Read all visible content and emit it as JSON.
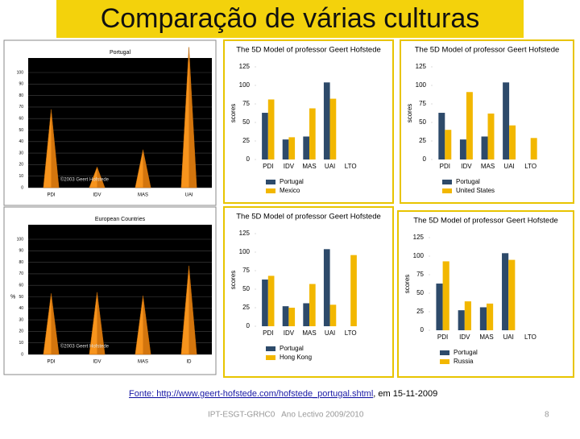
{
  "slide": {
    "title": "Comparação de várias culturas",
    "source_link": "Fonte: http://www.geert-hofstede.com/hofstede_portugal.shtml",
    "source_date": ", em 15-11-2009",
    "footer": "IPT-ESGT-GRHC0   Ano Lectivo 2009/2010",
    "page_number": 8
  },
  "chart_data": [
    {
      "type": "cone",
      "title": "Portugal",
      "annotation": "©2003 Geert Hofstede",
      "categories": [
        "PDI",
        "IDV",
        "MAS",
        "UAI"
      ],
      "values": [
        68,
        18,
        33,
        122
      ],
      "color": "#f7941d",
      "ylim": [
        0,
        100
      ],
      "yticks": [
        0,
        10,
        20,
        30,
        40,
        50,
        60,
        70,
        80,
        90,
        100
      ],
      "grid": true
    },
    {
      "type": "bar",
      "title": "The 5D Model of professor Geert Hofstede",
      "ylabel": "scores",
      "categories": [
        "PDI",
        "IDV",
        "MAS",
        "UAI",
        "LTO"
      ],
      "series": [
        {
          "name": "Portugal",
          "color": "#2d4a6a",
          "values": [
            63,
            27,
            31,
            104,
            null
          ]
        },
        {
          "name": "Mexico",
          "color": "#f2b700",
          "values": [
            81,
            30,
            69,
            82,
            null
          ]
        }
      ],
      "ylim": [
        0,
        125
      ],
      "yticks": [
        0,
        25,
        50,
        75,
        100,
        125
      ]
    },
    {
      "type": "bar",
      "title": "The 5D Model of professor Geert Hofstede",
      "ylabel": "scores",
      "categories": [
        "PDI",
        "IDV",
        "MAS",
        "UAI",
        "LTO"
      ],
      "series": [
        {
          "name": "Portugal",
          "color": "#2d4a6a",
          "values": [
            63,
            27,
            31,
            104,
            null
          ]
        },
        {
          "name": "United States",
          "color": "#f2b700",
          "values": [
            40,
            91,
            62,
            46,
            29
          ]
        }
      ],
      "ylim": [
        0,
        125
      ],
      "yticks": [
        0,
        25,
        50,
        75,
        100,
        125
      ]
    },
    {
      "type": "cone",
      "title": "European Countries",
      "ylabel": "%",
      "annotation": "©2003 Geert Hofstede",
      "categories": [
        "PDI",
        "IDV",
        "MAS",
        "ID"
      ],
      "values": [
        53,
        54,
        51,
        77
      ],
      "color": "#f7941d",
      "ylim": [
        0,
        100
      ],
      "yticks": [
        0,
        10,
        20,
        30,
        40,
        50,
        60,
        70,
        80,
        90,
        100
      ],
      "grid": true
    },
    {
      "type": "bar",
      "title": "The 5D Model of professor Geert Hofstede",
      "ylabel": "scores",
      "categories": [
        "PDI",
        "IDV",
        "MAS",
        "UAI",
        "LTO"
      ],
      "series": [
        {
          "name": "Portugal",
          "color": "#2d4a6a",
          "values": [
            63,
            27,
            31,
            104,
            null
          ]
        },
        {
          "name": "Hong Kong",
          "color": "#f2b700",
          "values": [
            68,
            25,
            57,
            29,
            96
          ]
        }
      ],
      "ylim": [
        0,
        125
      ],
      "yticks": [
        0,
        25,
        50,
        75,
        100,
        125
      ]
    },
    {
      "type": "bar",
      "title": "The 5D Model of professor Geert Hofstede",
      "ylabel": "scores",
      "categories": [
        "PDI",
        "IDV",
        "MAS",
        "UAI",
        "LTO"
      ],
      "series": [
        {
          "name": "Portugal",
          "color": "#2d4a6a",
          "values": [
            63,
            27,
            31,
            104,
            null
          ]
        },
        {
          "name": "Russia",
          "color": "#f2b700",
          "values": [
            93,
            39,
            36,
            95,
            null
          ]
        }
      ],
      "ylim": [
        0,
        125
      ],
      "yticks": [
        0,
        25,
        50,
        75,
        100,
        125
      ]
    }
  ]
}
